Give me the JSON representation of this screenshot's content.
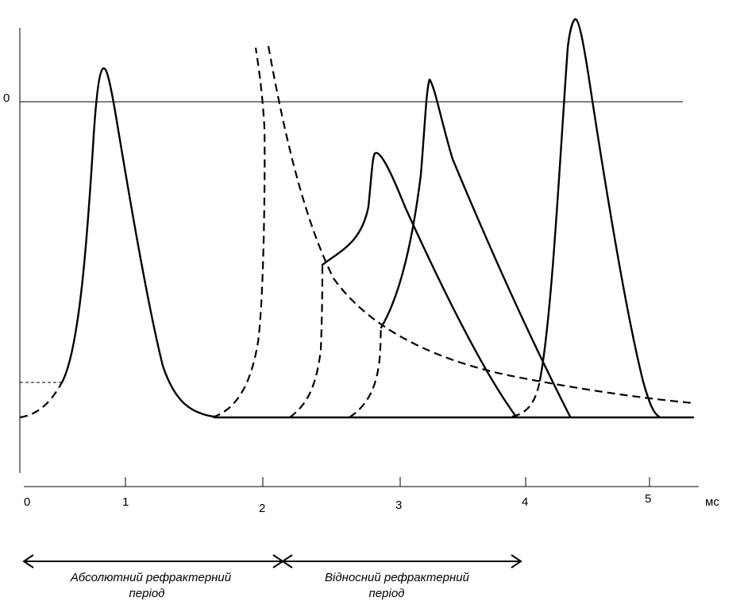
{
  "zero_label": "0",
  "x_ticks": [
    "0",
    "1",
    "2",
    "3",
    "4",
    "5"
  ],
  "unit_label": "мс",
  "absolute_period": {
    "line1": "Абсолютний  рефрактерний",
    "line2": "період"
  },
  "relative_period": {
    "line1": "Відносний  рефрактерний",
    "line2": "період"
  }
}
